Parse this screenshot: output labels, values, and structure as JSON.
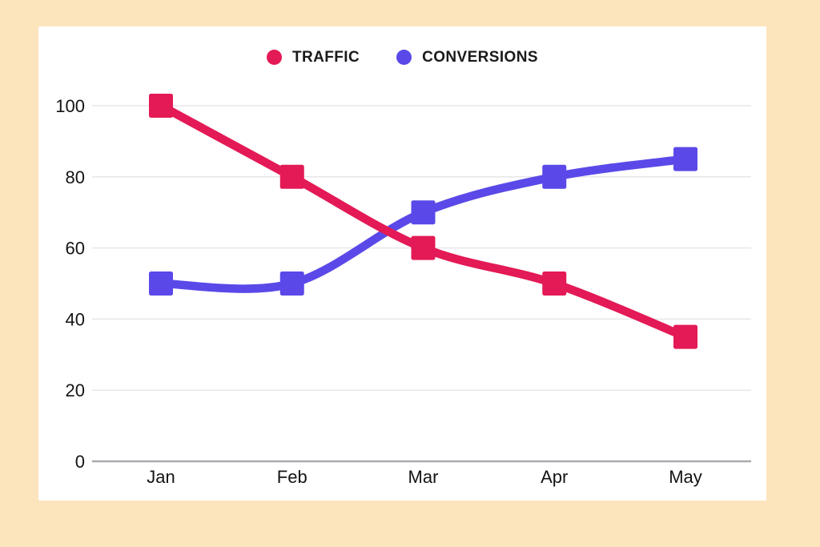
{
  "page": {
    "background_color": "#fce4bc",
    "card_background_color": "#ffffff"
  },
  "chart_data": {
    "type": "line",
    "title": "",
    "xlabel": "",
    "ylabel": "",
    "categories": [
      "Jan",
      "Feb",
      "Mar",
      "Apr",
      "May"
    ],
    "series": [
      {
        "name": "TRAFFIC",
        "color": "#e31a55",
        "values": [
          100,
          80,
          60,
          50,
          35
        ]
      },
      {
        "name": "CONVERSIONS",
        "color": "#5a49e8",
        "values": [
          50,
          50,
          70,
          80,
          85
        ]
      }
    ],
    "ylim": [
      0,
      100
    ],
    "y_ticks": [
      0,
      20,
      40,
      60,
      80,
      100
    ],
    "grid": "horizontal-only",
    "gridline_color": "#e7e7ea",
    "axis_line_color": "#a9a9af",
    "tick_label_color": "#141414",
    "legend_position": "top-center",
    "marker_shape": "square",
    "line_smoothing": true,
    "draw_order_note": "traffic line drawn on top of conversions line"
  }
}
